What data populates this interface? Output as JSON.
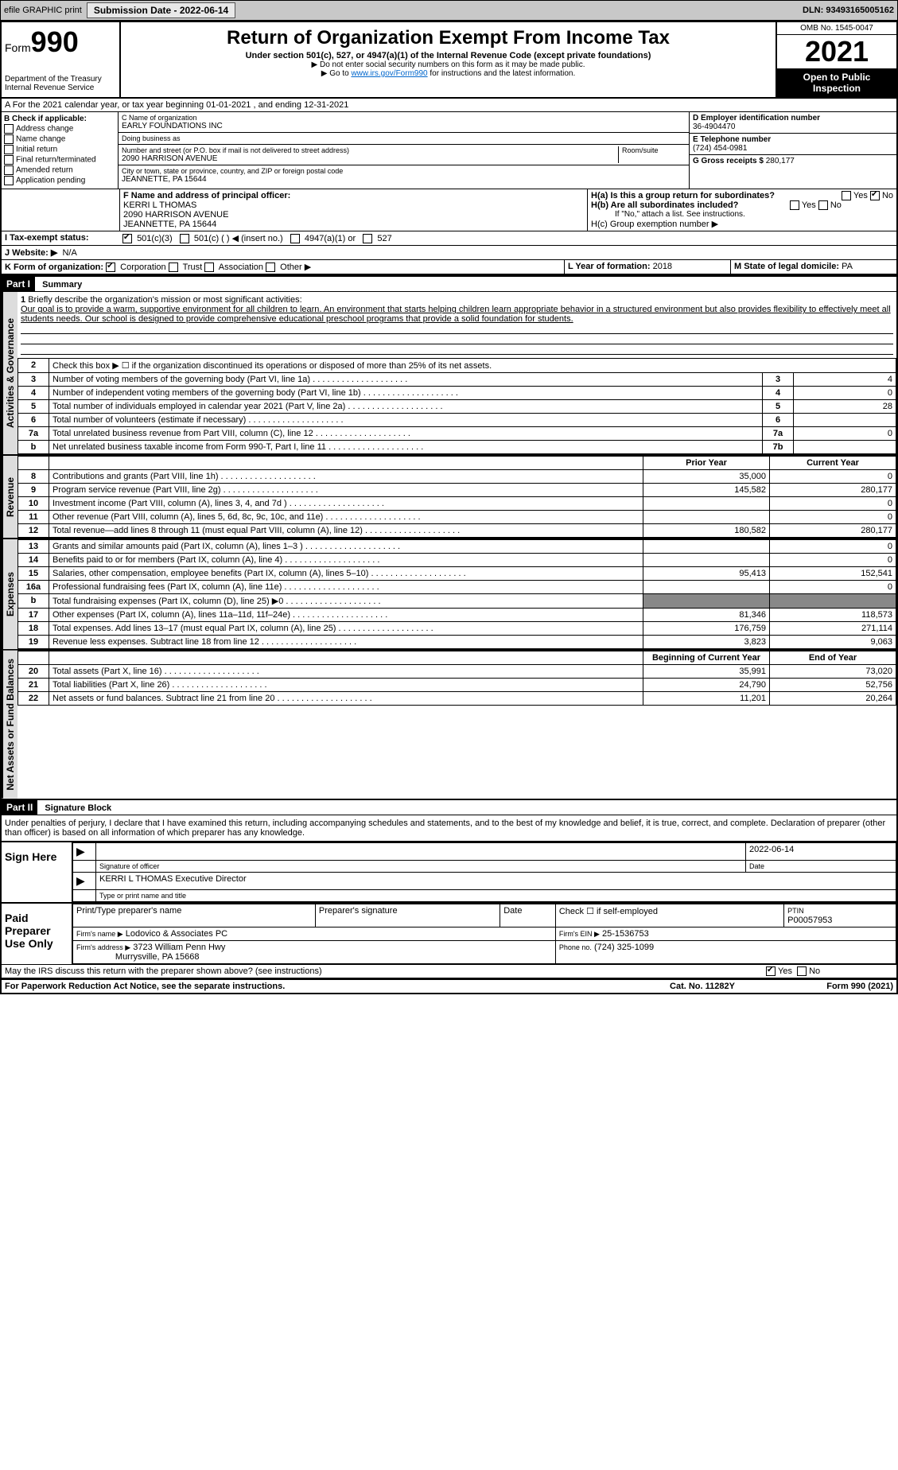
{
  "top": {
    "efile": "efile GRAPHIC print",
    "submission_label": "Submission Date - 2022-06-14",
    "dln": "DLN: 93493165005162"
  },
  "header": {
    "form_label": "Form",
    "form_number": "990",
    "title": "Return of Organization Exempt From Income Tax",
    "subtitle": "Under section 501(c), 527, or 4947(a)(1) of the Internal Revenue Code (except private foundations)",
    "note1": "▶ Do not enter social security numbers on this form as it may be made public.",
    "note2_pre": "▶ Go to ",
    "note2_link": "www.irs.gov/Form990",
    "note2_post": " for instructions and the latest information.",
    "dept": "Department of the Treasury",
    "irs": "Internal Revenue Service",
    "omb": "OMB No. 1545-0047",
    "year": "2021",
    "open": "Open to Public Inspection"
  },
  "A": {
    "line": "A For the 2021 calendar year, or tax year beginning 01-01-2021   , and ending 12-31-2021"
  },
  "B": {
    "title": "B Check if applicable:",
    "opts": [
      "Address change",
      "Name change",
      "Initial return",
      "Final return/terminated",
      "Amended return",
      "Application pending"
    ]
  },
  "C": {
    "name_lbl": "C Name of organization",
    "name": "EARLY FOUNDATIONS INC",
    "dba_lbl": "Doing business as",
    "dba": "",
    "addr_lbl": "Number and street (or P.O. box if mail is not delivered to street address)",
    "room_lbl": "Room/suite",
    "addr": "2090 HARRISON AVENUE",
    "city_lbl": "City or town, state or province, country, and ZIP or foreign postal code",
    "city": "JEANNETTE, PA  15644"
  },
  "D": {
    "lbl": "D Employer identification number",
    "val": "36-4904470"
  },
  "E": {
    "lbl": "E Telephone number",
    "val": "(724) 454-0981"
  },
  "G": {
    "lbl": "G Gross receipts $",
    "val": "280,177"
  },
  "F": {
    "lbl": "F  Name and address of principal officer:",
    "name": "KERRI L THOMAS",
    "addr1": "2090 HARRISON AVENUE",
    "addr2": "JEANNETTE, PA  15644"
  },
  "H": {
    "a": "H(a)  Is this a group return for subordinates?",
    "b": "H(b)  Are all subordinates included?",
    "b_note": "If \"No,\" attach a list. See instructions.",
    "c": "H(c)  Group exemption number ▶",
    "yes": "Yes",
    "no": "No"
  },
  "I": {
    "lbl": "I  Tax-exempt status:",
    "opts": [
      "501(c)(3)",
      "501(c) (  ) ◀ (insert no.)",
      "4947(a)(1) or",
      "527"
    ]
  },
  "J": {
    "lbl": "J  Website: ▶",
    "val": "N/A"
  },
  "K": {
    "lbl": "K Form of organization:",
    "opts": [
      "Corporation",
      "Trust",
      "Association",
      "Other ▶"
    ]
  },
  "L": {
    "lbl": "L Year of formation:",
    "val": "2018"
  },
  "M": {
    "lbl": "M State of legal domicile:",
    "val": "PA"
  },
  "part1": {
    "hdr": "Part I",
    "title": "Summary",
    "q1_lbl": "1",
    "q1": "Briefly describe the organization's mission or most significant activities:",
    "q1_text": "Our goal is to provide a warm, supportive environment for all children to learn. An environment that starts helping children learn appropriate behavior in a structured environment but also provides flexibility to effectively meet all students needs. Our school is designed to provide comprehensive educational preschool programs that provide a solid foundation for students.",
    "rows_gov": [
      {
        "n": "2",
        "t": "Check this box ▶ ☐  if the organization discontinued its operations or disposed of more than 25% of its net assets."
      },
      {
        "n": "3",
        "t": "Number of voting members of the governing body (Part VI, line 1a)",
        "box": "3",
        "v": "4"
      },
      {
        "n": "4",
        "t": "Number of independent voting members of the governing body (Part VI, line 1b)",
        "box": "4",
        "v": "0"
      },
      {
        "n": "5",
        "t": "Total number of individuals employed in calendar year 2021 (Part V, line 2a)",
        "box": "5",
        "v": "28"
      },
      {
        "n": "6",
        "t": "Total number of volunteers (estimate if necessary)",
        "box": "6",
        "v": ""
      },
      {
        "n": "7a",
        "t": "Total unrelated business revenue from Part VIII, column (C), line 12",
        "box": "7a",
        "v": "0"
      },
      {
        "n": "b",
        "t": "Net unrelated business taxable income from Form 990-T, Part I, line 11",
        "box": "7b",
        "v": ""
      }
    ],
    "col_prior": "Prior Year",
    "col_curr": "Current Year",
    "rows_rev": [
      {
        "n": "8",
        "t": "Contributions and grants (Part VIII, line 1h)",
        "p": "35,000",
        "c": "0"
      },
      {
        "n": "9",
        "t": "Program service revenue (Part VIII, line 2g)",
        "p": "145,582",
        "c": "280,177"
      },
      {
        "n": "10",
        "t": "Investment income (Part VIII, column (A), lines 3, 4, and 7d )",
        "p": "",
        "c": "0"
      },
      {
        "n": "11",
        "t": "Other revenue (Part VIII, column (A), lines 5, 6d, 8c, 9c, 10c, and 11e)",
        "p": "",
        "c": "0"
      },
      {
        "n": "12",
        "t": "Total revenue—add lines 8 through 11 (must equal Part VIII, column (A), line 12)",
        "p": "180,582",
        "c": "280,177"
      }
    ],
    "rows_exp": [
      {
        "n": "13",
        "t": "Grants and similar amounts paid (Part IX, column (A), lines 1–3 )",
        "p": "",
        "c": "0"
      },
      {
        "n": "14",
        "t": "Benefits paid to or for members (Part IX, column (A), line 4)",
        "p": "",
        "c": "0"
      },
      {
        "n": "15",
        "t": "Salaries, other compensation, employee benefits (Part IX, column (A), lines 5–10)",
        "p": "95,413",
        "c": "152,541"
      },
      {
        "n": "16a",
        "t": "Professional fundraising fees (Part IX, column (A), line 11e)",
        "p": "",
        "c": "0"
      },
      {
        "n": "b",
        "t": "Total fundraising expenses (Part IX, column (D), line 25) ▶0",
        "p": "—",
        "c": "—"
      },
      {
        "n": "17",
        "t": "Other expenses (Part IX, column (A), lines 11a–11d, 11f–24e)",
        "p": "81,346",
        "c": "118,573"
      },
      {
        "n": "18",
        "t": "Total expenses. Add lines 13–17 (must equal Part IX, column (A), line 25)",
        "p": "176,759",
        "c": "271,114"
      },
      {
        "n": "19",
        "t": "Revenue less expenses. Subtract line 18 from line 12",
        "p": "3,823",
        "c": "9,063"
      }
    ],
    "col_beg": "Beginning of Current Year",
    "col_end": "End of Year",
    "rows_net": [
      {
        "n": "20",
        "t": "Total assets (Part X, line 16)",
        "p": "35,991",
        "c": "73,020"
      },
      {
        "n": "21",
        "t": "Total liabilities (Part X, line 26)",
        "p": "24,790",
        "c": "52,756"
      },
      {
        "n": "22",
        "t": "Net assets or fund balances. Subtract line 21 from line 20",
        "p": "11,201",
        "c": "20,264"
      }
    ],
    "tab_gov": "Activities & Governance",
    "tab_rev": "Revenue",
    "tab_exp": "Expenses",
    "tab_net": "Net Assets or Fund Balances"
  },
  "part2": {
    "hdr": "Part II",
    "title": "Signature Block",
    "decl": "Under penalties of perjury, I declare that I have examined this return, including accompanying schedules and statements, and to the best of my knowledge and belief, it is true, correct, and complete. Declaration of preparer (other than officer) is based on all information of which preparer has any knowledge.",
    "sign_here": "Sign Here",
    "sig_officer": "Signature of officer",
    "date": "Date",
    "date_val": "2022-06-14",
    "officer_name": "KERRI L THOMAS  Executive Director",
    "type_name": "Type or print name and title",
    "paid": "Paid Preparer Use Only",
    "prep_name_lbl": "Print/Type preparer's name",
    "prep_sig_lbl": "Preparer's signature",
    "prep_date_lbl": "Date",
    "check_self": "Check ☐ if self-employed",
    "ptin_lbl": "PTIN",
    "ptin": "P00057953",
    "firm_name_lbl": "Firm's name  ▶",
    "firm_name": "Lodovico & Associates PC",
    "firm_ein_lbl": "Firm's EIN ▶",
    "firm_ein": "25-1536753",
    "firm_addr_lbl": "Firm's address ▶",
    "firm_addr": "3723 William Penn Hwy",
    "firm_addr2": "Murrysville, PA  15668",
    "phone_lbl": "Phone no.",
    "phone": "(724) 325-1099",
    "may_irs": "May the IRS discuss this return with the preparer shown above? (see instructions)",
    "yes": "Yes",
    "no": "No"
  },
  "footer": {
    "pra": "For Paperwork Reduction Act Notice, see the separate instructions.",
    "cat": "Cat. No. 11282Y",
    "form": "Form 990 (2021)"
  }
}
